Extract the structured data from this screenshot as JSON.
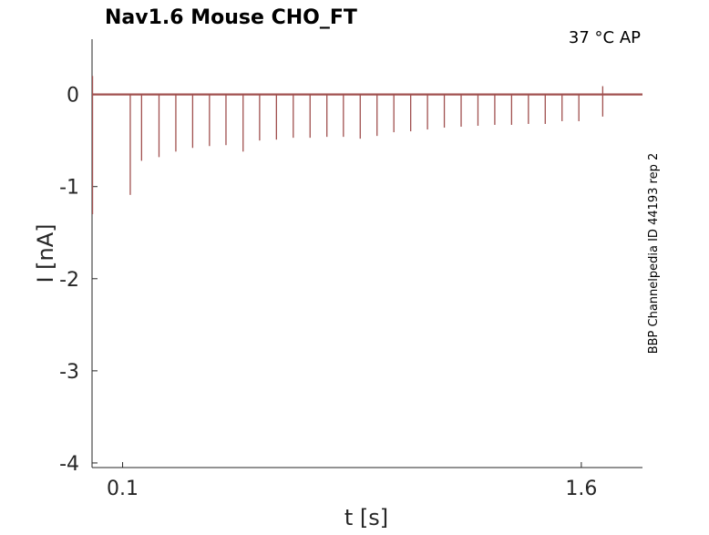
{
  "chart_data": {
    "type": "line",
    "title": "Nav1.6  Mouse  CHO_FT",
    "condition": "37 °C  AP",
    "source_label": "BBP Channelpedia ID 44193 rep 2",
    "xlabel": "t [s]",
    "ylabel": "I [nA]",
    "xlim": [
      0.0,
      1.8
    ],
    "ylim": [
      -4.05,
      0.6
    ],
    "x_ticks": [
      0.1,
      1.6
    ],
    "x_tick_labels": [
      "0.1",
      "1.6"
    ],
    "y_ticks": [
      0,
      -1,
      -2,
      -3,
      -4
    ],
    "y_tick_labels": [
      "0",
      "-1",
      "-2",
      "-3",
      "-4"
    ],
    "grid": false,
    "legend": "none",
    "trace_color": "#a0504f",
    "baseline_nA": 0.0,
    "initial_transient": {
      "t": 0.0,
      "min_nA": -1.3,
      "max_nA": 0.2
    },
    "series": [
      {
        "spikes": [
          {
            "t": 0.125,
            "peak_nA": -1.09
          },
          {
            "t": 0.162,
            "peak_nA": -0.72
          },
          {
            "t": 0.219,
            "peak_nA": -0.68
          },
          {
            "t": 0.274,
            "peak_nA": -0.62
          },
          {
            "t": 0.329,
            "peak_nA": -0.58
          },
          {
            "t": 0.384,
            "peak_nA": -0.56
          },
          {
            "t": 0.438,
            "peak_nA": -0.55
          },
          {
            "t": 0.494,
            "peak_nA": -0.62
          },
          {
            "t": 0.548,
            "peak_nA": -0.5
          },
          {
            "t": 0.603,
            "peak_nA": -0.49
          },
          {
            "t": 0.658,
            "peak_nA": -0.47
          },
          {
            "t": 0.713,
            "peak_nA": -0.47
          },
          {
            "t": 0.768,
            "peak_nA": -0.46
          },
          {
            "t": 0.822,
            "peak_nA": -0.46
          },
          {
            "t": 0.877,
            "peak_nA": -0.48
          },
          {
            "t": 0.932,
            "peak_nA": -0.45
          },
          {
            "t": 0.987,
            "peak_nA": -0.41
          },
          {
            "t": 1.042,
            "peak_nA": -0.4
          },
          {
            "t": 1.097,
            "peak_nA": -0.38
          },
          {
            "t": 1.152,
            "peak_nA": -0.36
          },
          {
            "t": 1.207,
            "peak_nA": -0.35
          },
          {
            "t": 1.262,
            "peak_nA": -0.34
          },
          {
            "t": 1.317,
            "peak_nA": -0.33
          },
          {
            "t": 1.372,
            "peak_nA": -0.33
          },
          {
            "t": 1.427,
            "peak_nA": -0.32
          },
          {
            "t": 1.482,
            "peak_nA": -0.32
          },
          {
            "t": 1.537,
            "peak_nA": -0.29
          },
          {
            "t": 1.592,
            "peak_nA": -0.29
          }
        ],
        "end_artifact": {
          "t": 1.67,
          "min_nA": -0.24,
          "max_nA": 0.09
        }
      }
    ]
  }
}
